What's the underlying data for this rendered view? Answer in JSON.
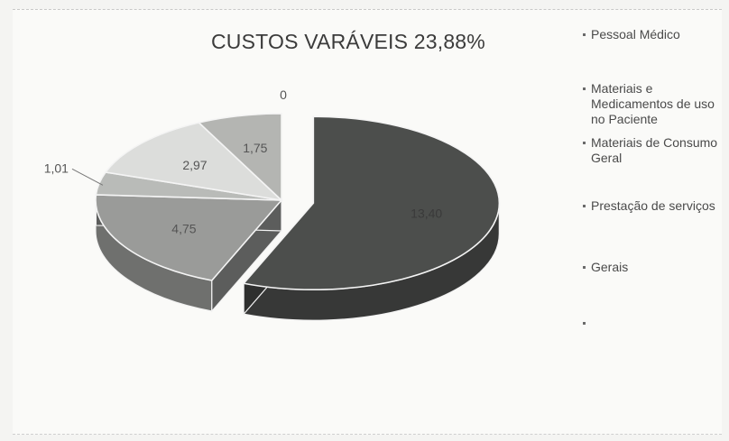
{
  "chart_data": {
    "type": "pie",
    "title": "CUSTOS VARÁVEIS 23,88%",
    "categories": [
      "Pessoal Médico",
      "Materiais e Medicamentos de uso no Paciente",
      "Materiais de Consumo Geral",
      "Prestação de serviços",
      "Gerais",
      ""
    ],
    "values": [
      13.4,
      4.75,
      1.01,
      2.97,
      1.75,
      0
    ],
    "value_labels": [
      "13,40",
      "4,75",
      "1,01",
      "2,97",
      "1,75",
      "0"
    ],
    "colors": [
      "#4c4e4c",
      "#9a9b99",
      "#b9bbb8",
      "#dcdddb",
      "#b4b5b2",
      "#ffffff"
    ],
    "exploded_slice": "Pessoal Médico",
    "style": "3d",
    "legend_position": "right"
  }
}
